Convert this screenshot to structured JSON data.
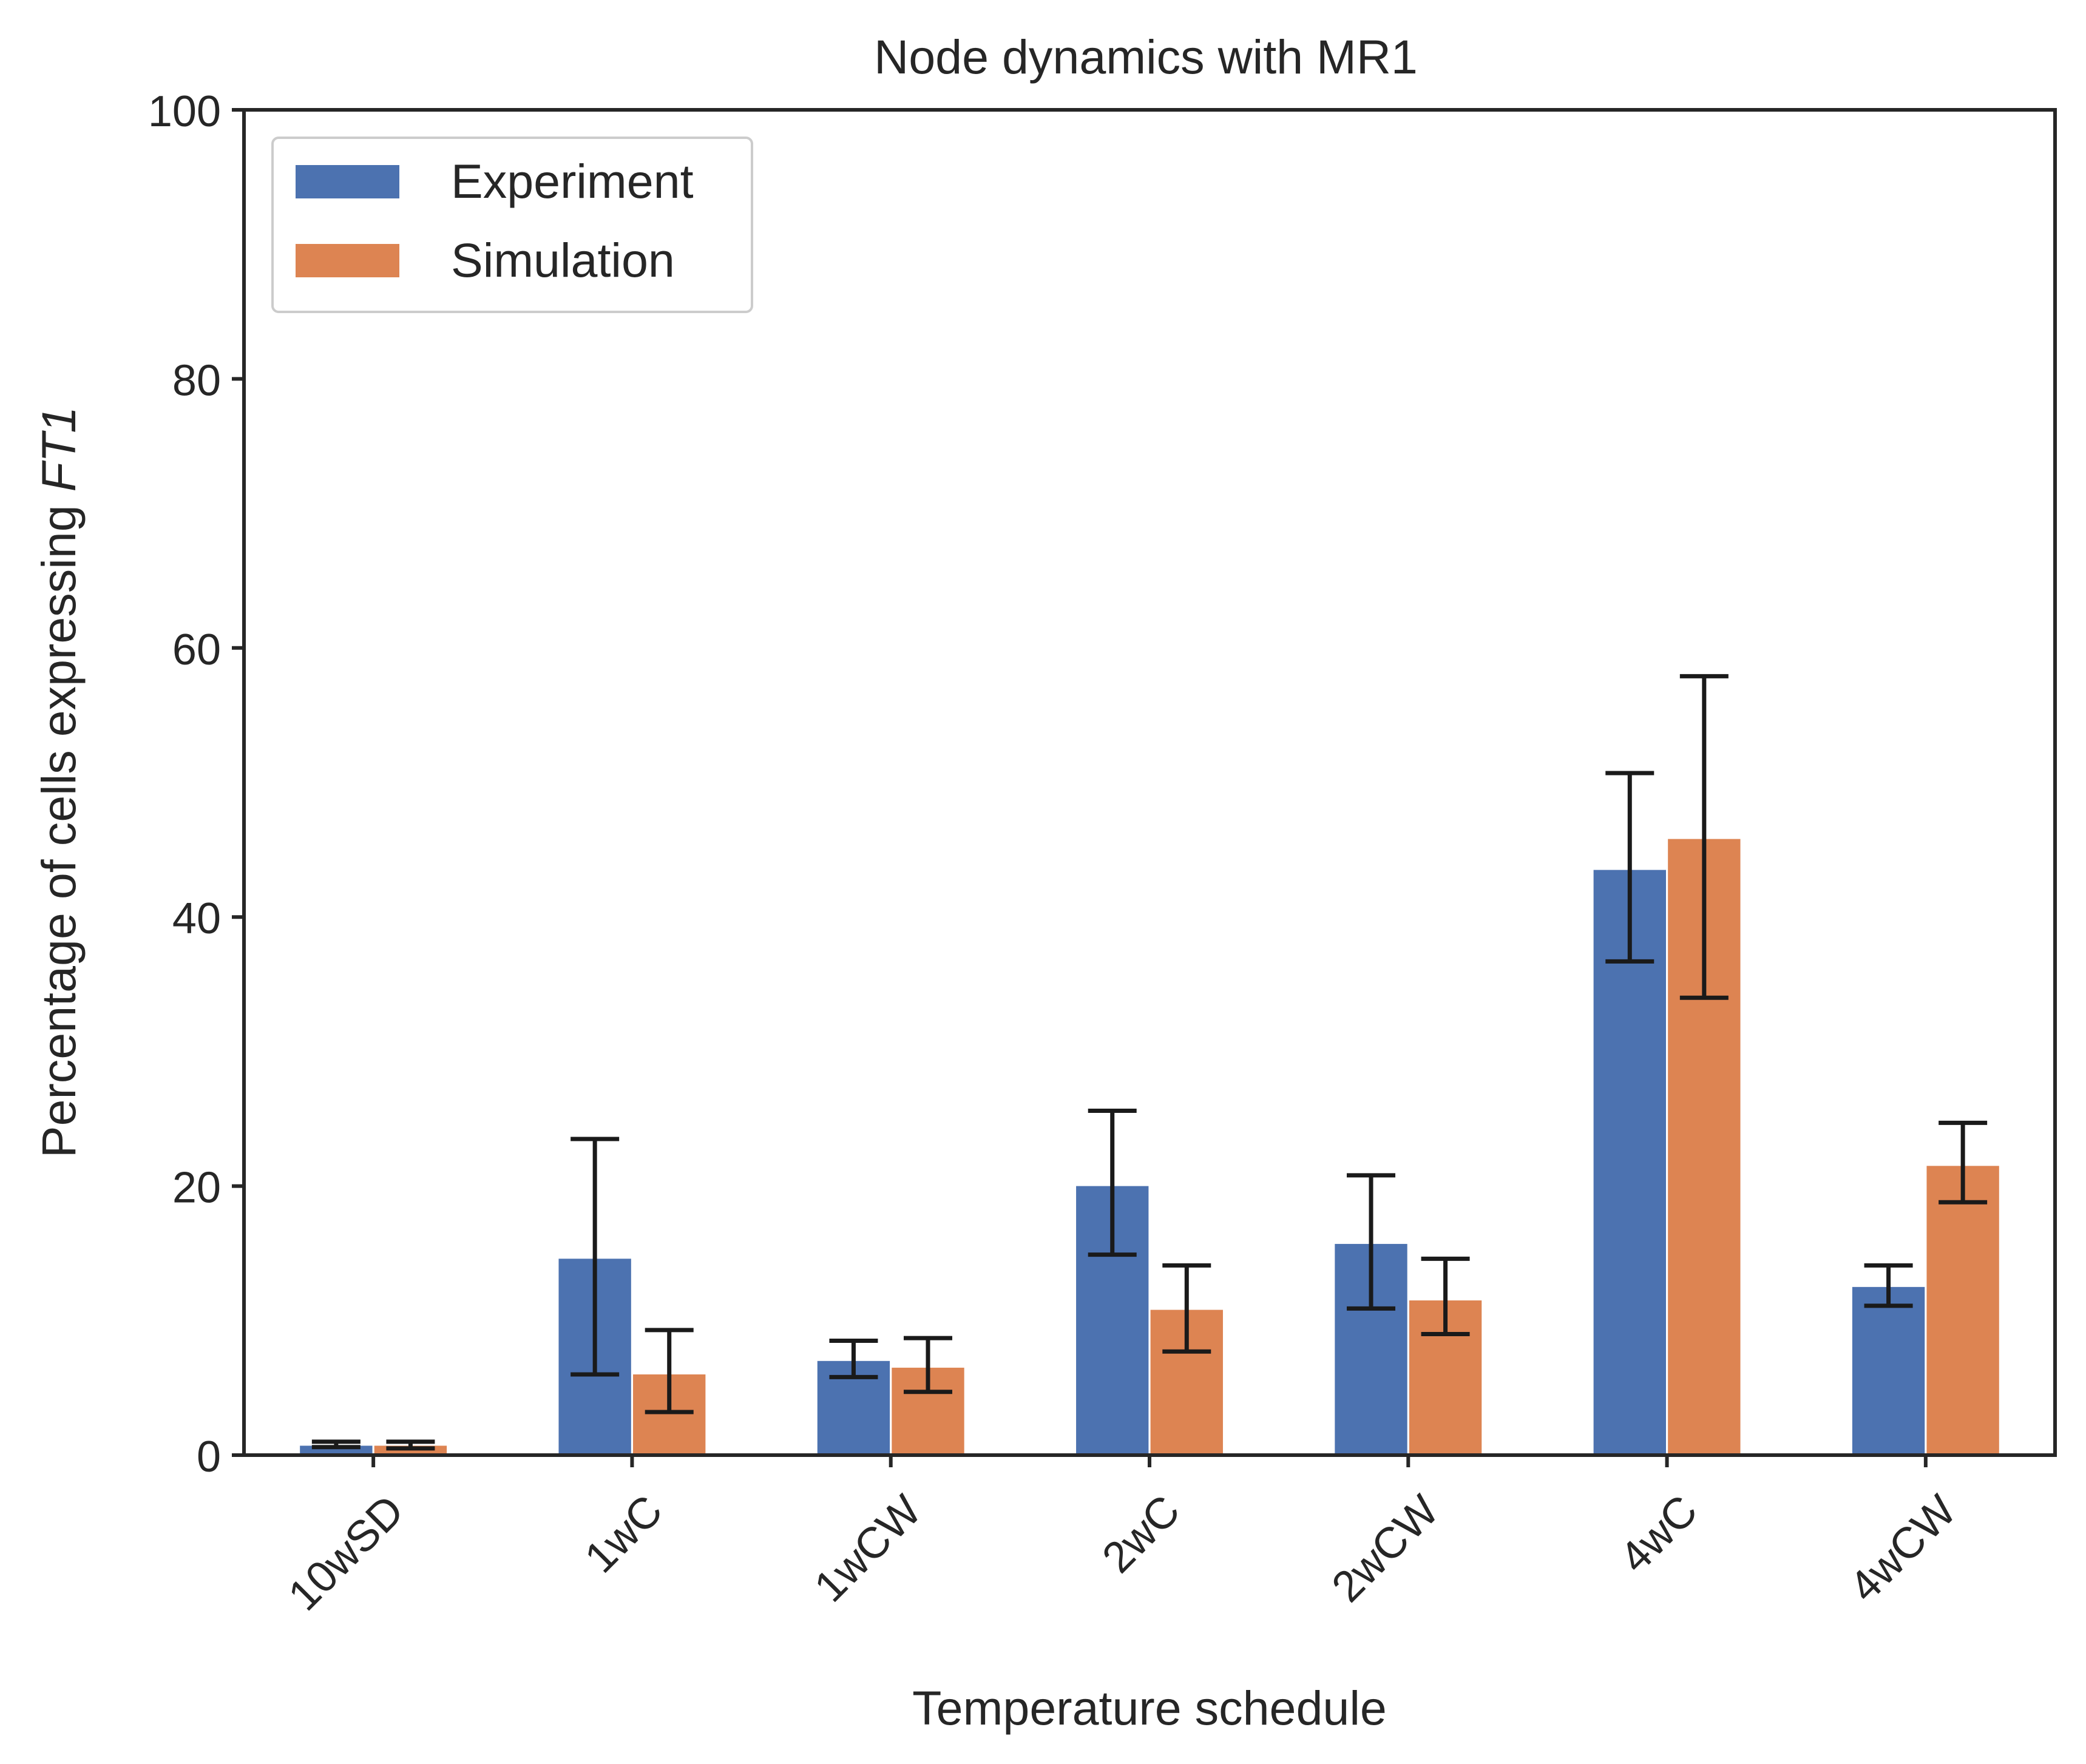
{
  "chart_data": {
    "type": "bar",
    "title": "Node dynamics with MR1",
    "xlabel": "Temperature schedule",
    "ylabel_main": "Percentage of cells expressing ",
    "ylabel_italic": "FT1",
    "ylim": [
      0,
      100
    ],
    "yticks": [
      0,
      20,
      40,
      60,
      80,
      100
    ],
    "grid": false,
    "legend_position": "top-left",
    "categories": [
      "10wSD",
      "1wC",
      "1wCW",
      "2wC",
      "2wCW",
      "4wC",
      "4wCW"
    ],
    "series": [
      {
        "name": "Experiment",
        "color": "#4c72b0",
        "values": [
          0.7,
          14.6,
          7.0,
          20.0,
          15.7,
          43.5,
          12.5
        ],
        "err_low": [
          0.6,
          6.0,
          5.8,
          14.9,
          10.9,
          36.7,
          11.1
        ],
        "err_high": [
          1.0,
          23.5,
          8.5,
          25.6,
          20.8,
          50.7,
          14.1
        ]
      },
      {
        "name": "Simulation",
        "color": "#dd8452",
        "values": [
          0.7,
          6.0,
          6.5,
          10.8,
          11.5,
          45.8,
          21.5
        ],
        "err_low": [
          0.5,
          3.2,
          4.7,
          7.7,
          9.0,
          34.0,
          18.8
        ],
        "err_high": [
          1.0,
          9.3,
          8.7,
          14.1,
          14.6,
          57.9,
          24.7
        ]
      }
    ]
  }
}
